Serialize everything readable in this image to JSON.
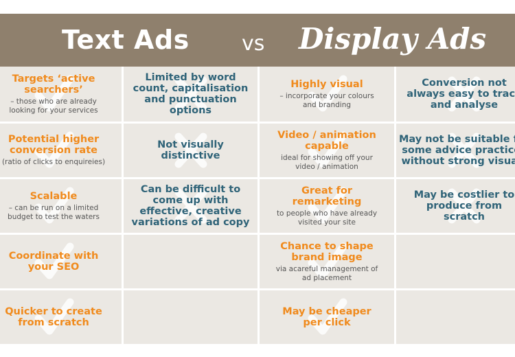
{
  "header": {
    "left_title": "Text Ads",
    "vs": "vs",
    "right_title": "Display Ads",
    "background": "#8f806d"
  },
  "colors": {
    "pro": "#f08a1c",
    "con": "#2f6378",
    "cell": "#ebe8e3"
  },
  "rows": [
    [
      {
        "type": "pro",
        "title": "Targets ‘active searchers’",
        "sub": "– those who are already looking for your services"
      },
      {
        "type": "con",
        "title": "Limited by word count, capitalisation and punctuation options",
        "sub": ""
      },
      {
        "type": "pro",
        "title": "Highly visual",
        "sub": "– incorporate your colours and branding"
      },
      {
        "type": "con",
        "title": "Conversion not always easy to track and analyse",
        "sub": ""
      }
    ],
    [
      {
        "type": "pro",
        "title": "Potential higher conversion rate",
        "sub": "(ratio of clicks to enquireies)"
      },
      {
        "type": "con",
        "title": "Not visually distinctive",
        "sub": ""
      },
      {
        "type": "pro",
        "title": "Video / animation capable",
        "sub": "ideal for showing off your video / animation"
      },
      {
        "type": "con",
        "title": "May not be suitable for some advice practices without strong visuals",
        "sub": ""
      }
    ],
    [
      {
        "type": "pro",
        "title": "Scalable",
        "sub": "– can be run on a limited budget to test the waters"
      },
      {
        "type": "con",
        "title": "Can be difficult to come up with effective, creative variations of ad copy",
        "sub": ""
      },
      {
        "type": "pro",
        "title": "Great for remarketing",
        "sub": "to people who have already visited your site"
      },
      {
        "type": "con",
        "title": "May be costlier to produce from scratch",
        "sub": ""
      }
    ],
    [
      {
        "type": "pro",
        "title": "Coordinate with your SEO",
        "sub": ""
      },
      {
        "type": "empty",
        "title": "",
        "sub": ""
      },
      {
        "type": "pro",
        "title": "Chance to shape brand image",
        "sub": "via acareful management of ad placement"
      },
      {
        "type": "empty",
        "title": "",
        "sub": ""
      }
    ],
    [
      {
        "type": "pro",
        "title": "Quicker to create from scratch",
        "sub": ""
      },
      {
        "type": "empty",
        "title": "",
        "sub": ""
      },
      {
        "type": "pro",
        "title": "May be cheaper per click",
        "sub": ""
      },
      {
        "type": "empty",
        "title": "",
        "sub": ""
      }
    ]
  ],
  "icons": {
    "pro": "check-icon",
    "con": "cross-icon"
  }
}
